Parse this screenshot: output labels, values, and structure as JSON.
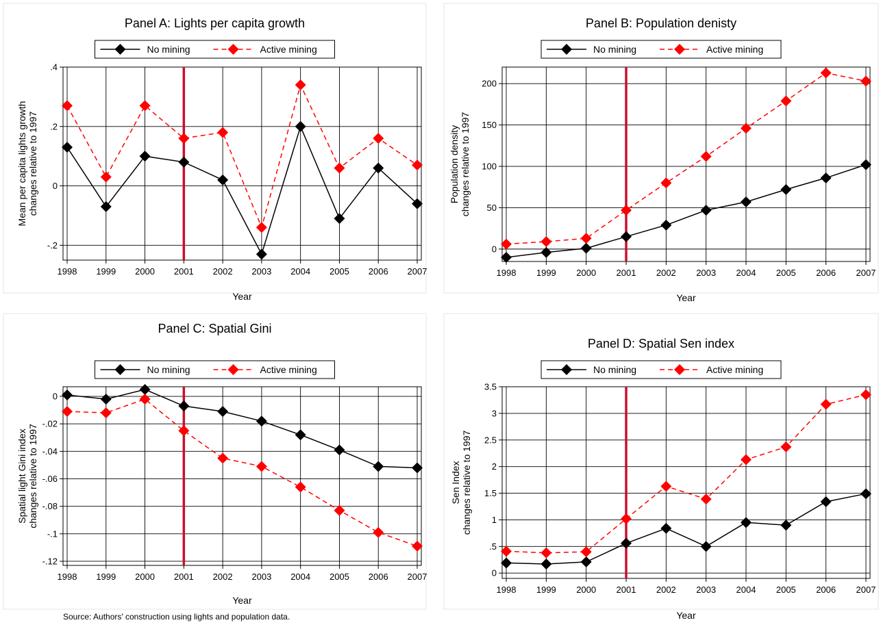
{
  "footnote": "Source: Authors' construction using lights and population data.",
  "chart_data": [
    {
      "type": "line",
      "title": "Panel A: Lights per capita growth",
      "xlabel": "Year",
      "ylabel_lines": [
        "Mean per capita lights growth",
        "changes relative to 1997"
      ],
      "x": [
        1998,
        1999,
        2000,
        2001,
        2002,
        2003,
        2004,
        2005,
        2006,
        2007
      ],
      "xlim": [
        1998,
        2007
      ],
      "ylim": [
        -0.25,
        0.4
      ],
      "yticks": [
        -0.2,
        0,
        0.2,
        0.4
      ],
      "ytick_labels": [
        "-.2",
        "0",
        ".2",
        ".4"
      ],
      "grid": true,
      "legend_position": "top",
      "event_year": 2001,
      "series": [
        {
          "name": "No mining",
          "color": "#000000",
          "dashed": false,
          "values": [
            0.13,
            -0.07,
            0.1,
            0.08,
            0.02,
            -0.23,
            0.2,
            -0.11,
            0.06,
            -0.06
          ]
        },
        {
          "name": "Active mining",
          "color": "#ff0000",
          "dashed": true,
          "values": [
            0.27,
            0.03,
            0.27,
            0.16,
            0.18,
            -0.14,
            0.34,
            0.06,
            0.16,
            0.07
          ]
        }
      ]
    },
    {
      "type": "line",
      "title": "Panel B: Population denisty",
      "xlabel": "Year",
      "ylabel_lines": [
        "Population density",
        "changes relative to 1997"
      ],
      "x": [
        1998,
        1999,
        2000,
        2001,
        2002,
        2003,
        2004,
        2005,
        2006,
        2007
      ],
      "xlim": [
        1998,
        2007
      ],
      "ylim": [
        -15,
        220
      ],
      "yticks": [
        0,
        50,
        100,
        150,
        200
      ],
      "ytick_labels": [
        "0",
        "50",
        "100",
        "150",
        "200"
      ],
      "grid": true,
      "legend_position": "top",
      "event_year": 2001,
      "series": [
        {
          "name": "No mining",
          "color": "#000000",
          "dashed": false,
          "values": [
            -10,
            -4,
            1,
            15,
            29,
            47,
            57,
            72,
            86,
            102
          ]
        },
        {
          "name": "Active mining",
          "color": "#ff0000",
          "dashed": true,
          "values": [
            6,
            9,
            13,
            47,
            80,
            112,
            146,
            179,
            213,
            203
          ]
        }
      ]
    },
    {
      "type": "line",
      "title": "Panel C: Spatial Gini",
      "xlabel": "Year",
      "ylabel_lines": [
        "Spatial light Gini index",
        "changes relative to 1997"
      ],
      "x": [
        1998,
        1999,
        2000,
        2001,
        2002,
        2003,
        2004,
        2005,
        2006,
        2007
      ],
      "xlim": [
        1998,
        2007
      ],
      "ylim": [
        -0.123,
        0.007
      ],
      "yticks": [
        -0.12,
        -0.1,
        -0.08,
        -0.06,
        -0.04,
        -0.02,
        0
      ],
      "ytick_labels": [
        "-.12",
        "-.1",
        "-.08",
        "-.06",
        "-.04",
        "-.02",
        "0"
      ],
      "grid": true,
      "legend_position": "top",
      "event_year": 2001,
      "series": [
        {
          "name": "No mining",
          "color": "#000000",
          "dashed": false,
          "values": [
            0.001,
            -0.002,
            0.005,
            -0.007,
            -0.011,
            -0.018,
            -0.028,
            -0.039,
            -0.051,
            -0.052
          ]
        },
        {
          "name": "Active mining",
          "color": "#ff0000",
          "dashed": true,
          "values": [
            -0.011,
            -0.012,
            -0.002,
            -0.025,
            -0.045,
            -0.051,
            -0.066,
            -0.083,
            -0.099,
            -0.109
          ]
        }
      ]
    },
    {
      "type": "line",
      "title": "Panel D: Spatial Sen index",
      "xlabel": "Year",
      "ylabel_lines": [
        "Sen Index",
        "changes relative to 1997"
      ],
      "x": [
        1998,
        1999,
        2000,
        2001,
        2002,
        2003,
        2004,
        2005,
        2006,
        2007
      ],
      "xlim": [
        1998,
        2007
      ],
      "ylim": [
        -0.1,
        3.5
      ],
      "yticks": [
        0,
        0.5,
        1,
        1.5,
        2,
        2.5,
        3,
        3.5
      ],
      "ytick_labels": [
        "0",
        ".5",
        "1",
        "1.5",
        "2",
        "2.5",
        "3",
        "3.5"
      ],
      "grid": true,
      "legend_position": "top",
      "event_year": 2001,
      "series": [
        {
          "name": "No mining",
          "color": "#000000",
          "dashed": false,
          "values": [
            0.19,
            0.17,
            0.21,
            0.56,
            0.84,
            0.5,
            0.95,
            0.9,
            1.34,
            1.49
          ]
        },
        {
          "name": "Active mining",
          "color": "#ff0000",
          "dashed": true,
          "values": [
            0.41,
            0.38,
            0.4,
            1.02,
            1.63,
            1.39,
            2.13,
            2.37,
            3.17,
            3.35
          ]
        }
      ]
    }
  ],
  "event_line_color": "#c8102e"
}
